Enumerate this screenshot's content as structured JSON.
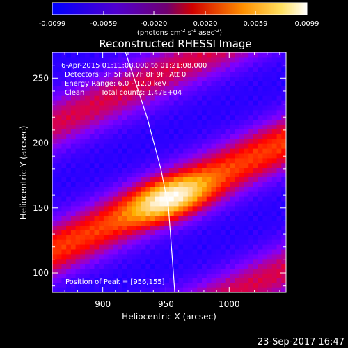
{
  "chart_data": {
    "type": "heatmap",
    "title": "Reconstructed RHESSI Image",
    "xlabel": "Heliocentric X (arcsec)",
    "ylabel": "Heliocentric Y (arcsec)",
    "xlim": [
      860,
      1045
    ],
    "ylim": [
      85,
      270
    ],
    "x_ticks": [
      900,
      950,
      1000
    ],
    "y_ticks": [
      100,
      150,
      200,
      250
    ],
    "colorbar": {
      "min": -0.0099,
      "max": 0.0099,
      "ticks": [
        "-0.0099",
        "-0.0059",
        "-0.0020",
        "0.0020",
        "0.0059",
        "0.0099"
      ],
      "unit_label_parts": [
        "(photons cm",
        "-2",
        " s",
        "-1",
        " asec",
        "-2",
        ")"
      ],
      "colormap": [
        "#0000ff",
        "#7f00ff",
        "#ff0000",
        "#ffb000",
        "#ffffff"
      ]
    },
    "annotations": {
      "time_range": "6-Apr-2015 01:11:08.000 to 01:21:08.000",
      "detectors": "Detectors: 3F 5F 6F 7F 8F 9F, Att 0",
      "energy": "Energy Range: 6.0 - 12.0 keV",
      "algorithm": "Clean",
      "counts": "Total counts: 1.47E+04",
      "peak": "Position of Peak = [956,155]"
    },
    "peak": {
      "x": 956,
      "y": 155
    },
    "ridges": [
      {
        "slope": 0.45,
        "intercept_y_at_950": 158,
        "amplitude": 1.0
      },
      {
        "slope": 0.45,
        "intercept_y_at_950": 255,
        "amplitude": 0.7
      },
      {
        "slope": 0.45,
        "intercept_y_at_950": 60,
        "amplitude": 0.7
      }
    ],
    "limb": [
      [
        918,
        270
      ],
      [
        935,
        220
      ],
      [
        946,
        180
      ],
      [
        952,
        150
      ],
      [
        957,
        85
      ]
    ],
    "footer_date": "23-Sep-2017 16:47"
  }
}
